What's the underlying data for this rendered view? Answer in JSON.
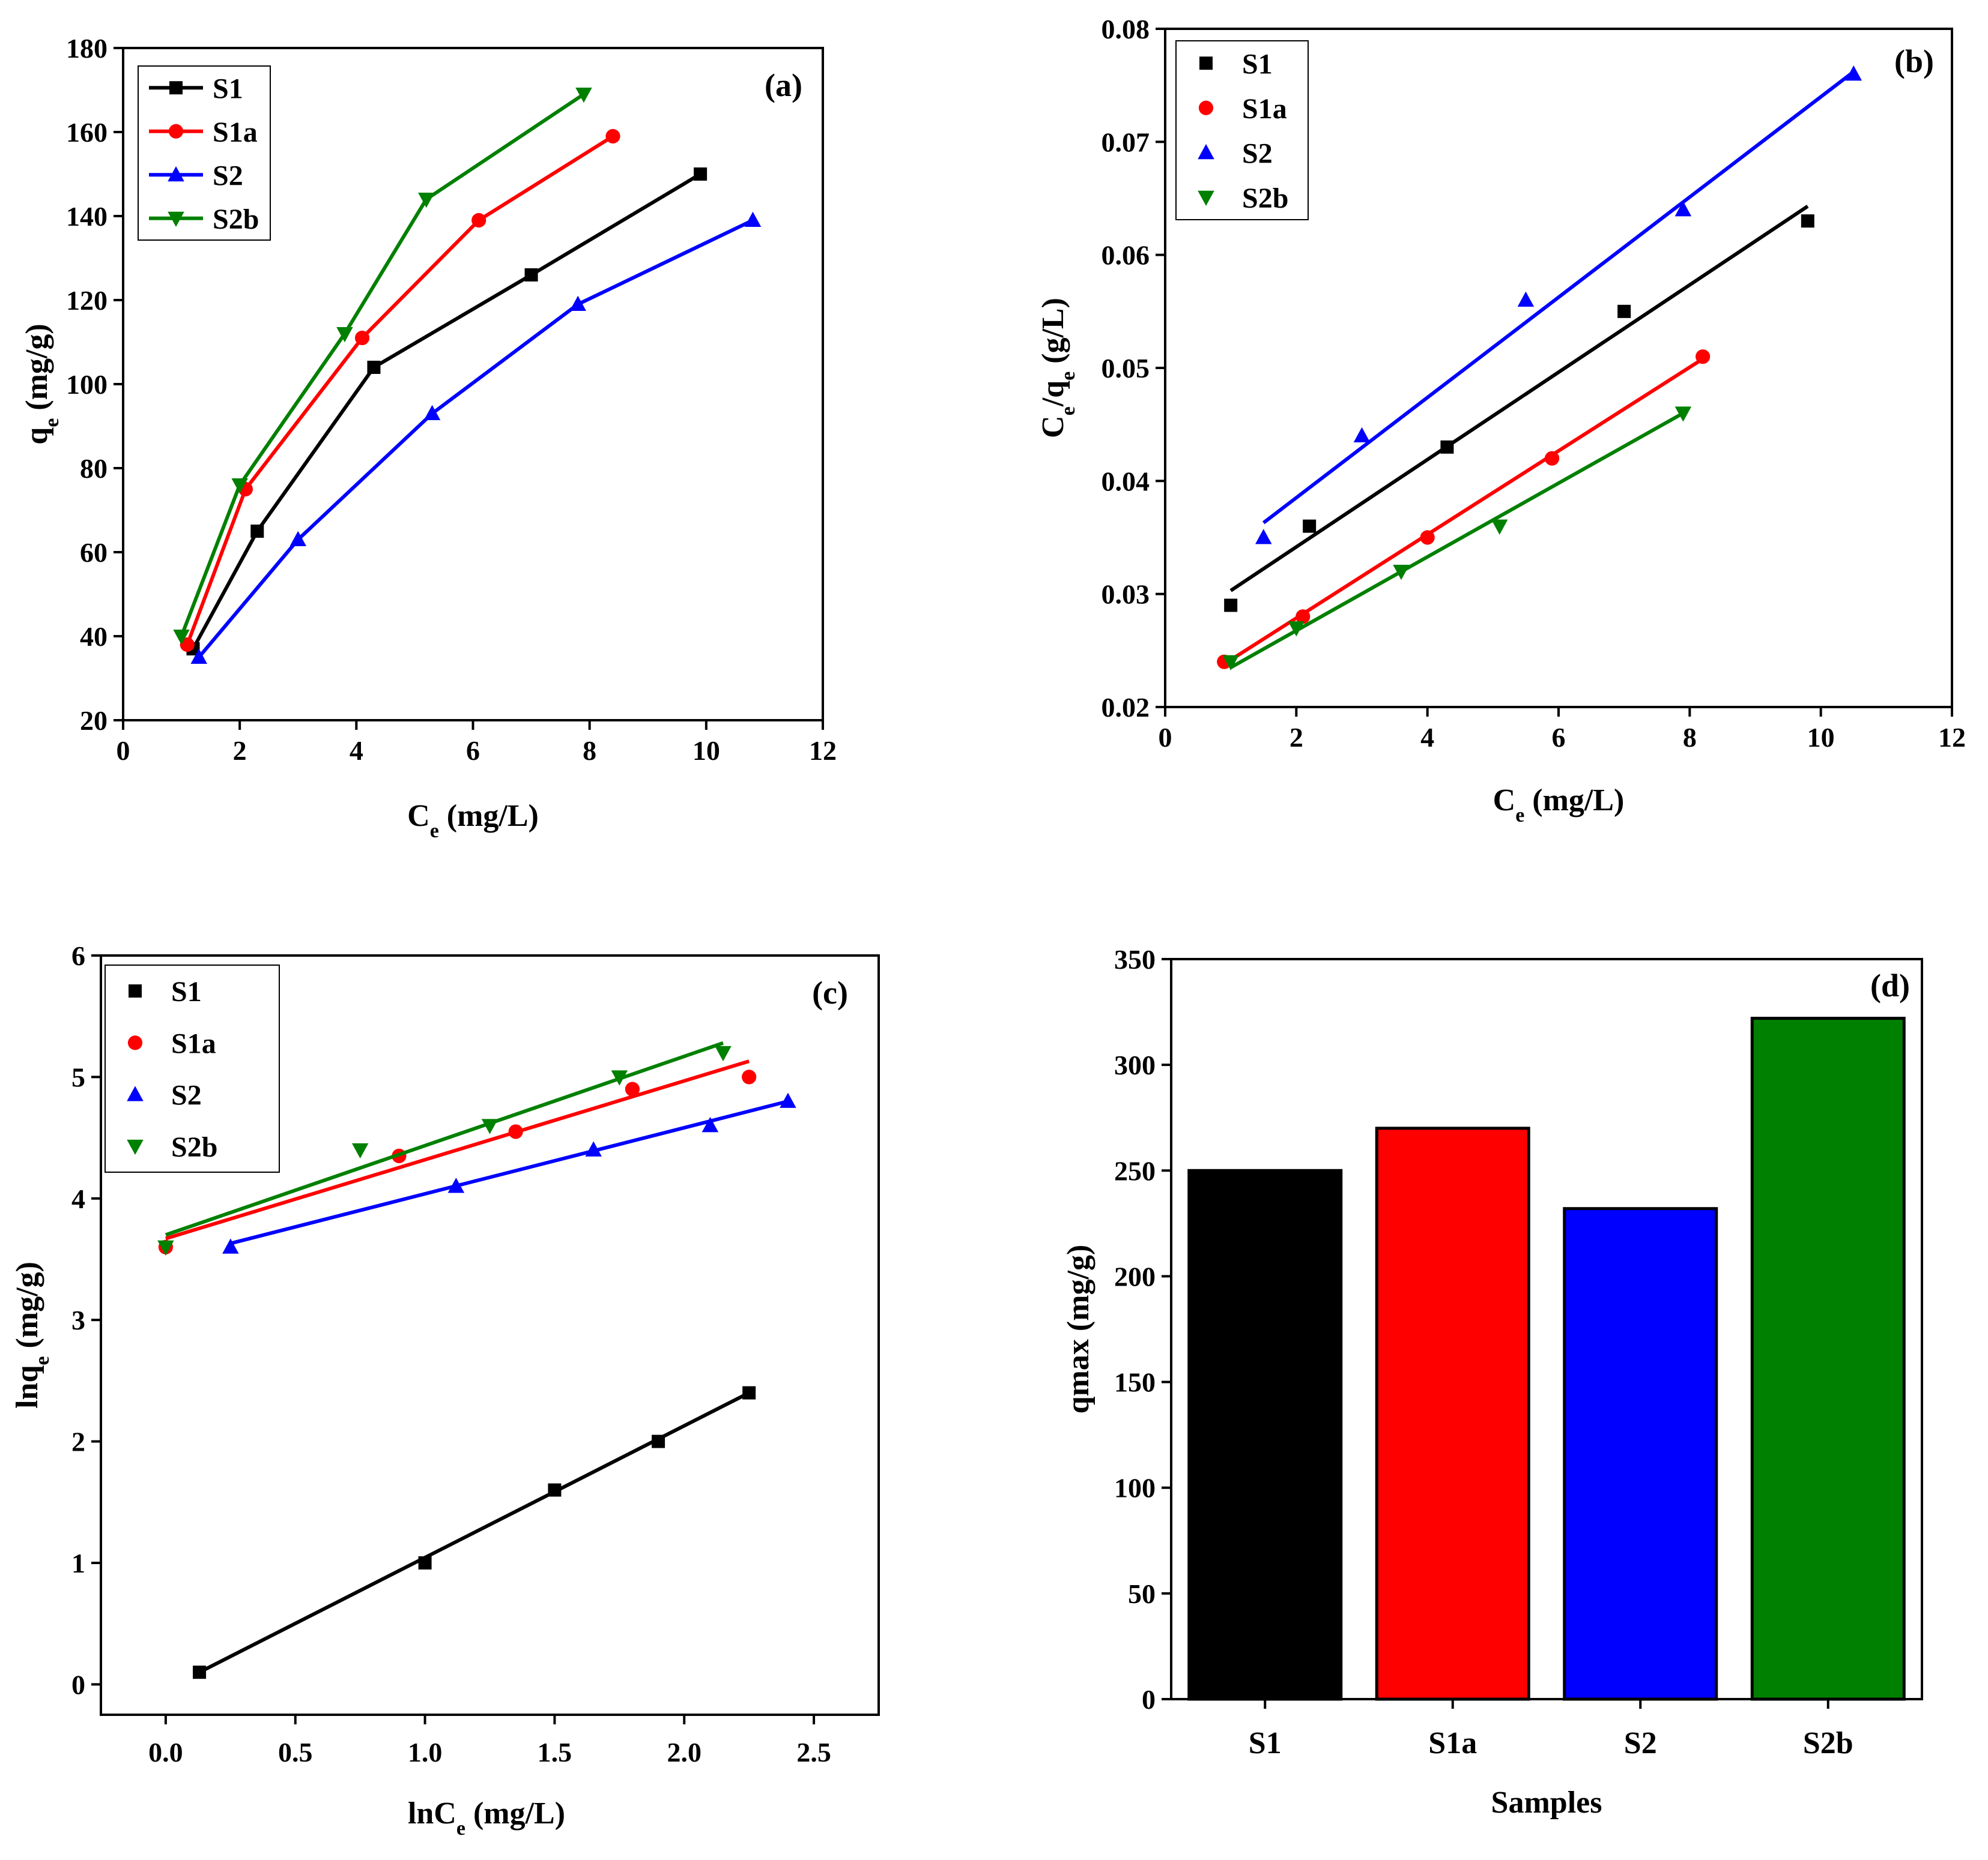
{
  "chart_data": [
    {
      "panel": "(a)",
      "type": "line",
      "xlabel_main": "C",
      "xlabel_sub": "e",
      "xlabel_rest": " (mg/L)",
      "ylabel_main": "q",
      "ylabel_sub": "e",
      "ylabel_rest": " (mg/g)",
      "xlim": [
        0,
        12
      ],
      "ylim": [
        20,
        180
      ],
      "xticks": [
        0,
        2,
        4,
        6,
        8,
        10,
        12
      ],
      "yticks": [
        20,
        40,
        60,
        80,
        100,
        120,
        140,
        160,
        180
      ],
      "series": [
        {
          "name": "S1",
          "color": "#000000",
          "marker": "square",
          "x": [
            1.2,
            2.3,
            4.3,
            7.0,
            9.9
          ],
          "y": [
            37,
            65,
            104,
            126,
            150
          ]
        },
        {
          "name": "S1a",
          "color": "#ff0000",
          "marker": "circle",
          "x": [
            1.1,
            2.1,
            4.1,
            6.1,
            8.4
          ],
          "y": [
            38,
            75,
            111,
            139,
            159
          ]
        },
        {
          "name": "S2",
          "color": "#0000ff",
          "marker": "triangle-up",
          "x": [
            1.3,
            3.0,
            5.3,
            7.8,
            10.8
          ],
          "y": [
            35,
            63,
            93,
            119,
            139
          ]
        },
        {
          "name": "S2b",
          "color": "#008000",
          "marker": "triangle-down",
          "x": [
            1.0,
            2.0,
            3.8,
            5.2,
            7.9
          ],
          "y": [
            40,
            76,
            112,
            144,
            169
          ]
        }
      ]
    },
    {
      "panel": "(b)",
      "type": "scatter",
      "xlabel_main": "C",
      "xlabel_sub": "e",
      "xlabel_rest": " (mg/L)",
      "ylabel_main": "C",
      "ylabel_sub": "e",
      "ylabel_rest": "/q",
      "ylabel_sub2": "e",
      "ylabel_rest2": " (g/L)",
      "xlim": [
        0,
        12
      ],
      "ylim": [
        0.02,
        0.08
      ],
      "xticks": [
        0,
        2,
        4,
        6,
        8,
        10,
        12
      ],
      "yticks": [
        "0.02",
        "0.03",
        "0.04",
        "0.05",
        "0.06",
        "0.07",
        "0.08"
      ],
      "series": [
        {
          "name": "S1",
          "color": "#000000",
          "marker": "square",
          "x": [
            1.0,
            2.2,
            4.3,
            7.0,
            9.8
          ],
          "y": [
            0.029,
            0.036,
            0.043,
            0.055,
            0.063
          ],
          "fit": [
            [
              1.0,
              0.0303
            ],
            [
              9.8,
              0.0643
            ]
          ]
        },
        {
          "name": "S1a",
          "color": "#ff0000",
          "marker": "circle",
          "x": [
            0.9,
            2.1,
            4.0,
            5.9,
            8.2
          ],
          "y": [
            0.024,
            0.028,
            0.035,
            0.042,
            0.051
          ],
          "fit": [
            [
              0.9,
              0.0238
            ],
            [
              8.2,
              0.0508
            ]
          ]
        },
        {
          "name": "S2",
          "color": "#0000ff",
          "marker": "triangle-up",
          "x": [
            1.5,
            3.0,
            5.5,
            7.9,
            10.5
          ],
          "y": [
            0.035,
            0.044,
            0.056,
            0.064,
            0.076
          ],
          "fit": [
            [
              1.5,
              0.0363
            ],
            [
              10.5,
              0.0762
            ]
          ]
        },
        {
          "name": "S2b",
          "color": "#008000",
          "marker": "triangle-down",
          "x": [
            1.0,
            2.0,
            3.6,
            5.1,
            7.9
          ],
          "y": [
            0.024,
            0.027,
            0.032,
            0.036,
            0.046
          ],
          "fit": [
            [
              1.0,
              0.0235
            ],
            [
              7.9,
              0.046
            ]
          ]
        }
      ]
    },
    {
      "panel": "(c)",
      "type": "scatter",
      "xlabel_main": "lnC",
      "xlabel_sub": "e",
      "xlabel_rest": " (mg/L)",
      "ylabel_main": "lnq",
      "ylabel_sub": "e",
      "ylabel_rest": " (mg/g)",
      "xlim": [
        -0.25,
        2.75
      ],
      "ylim": [
        -0.25,
        6
      ],
      "xticks": [
        "0.0",
        "0.5",
        "1.0",
        "1.5",
        "2.0",
        "2.5"
      ],
      "yticks": [
        0,
        1,
        2,
        3,
        4,
        5,
        6
      ],
      "series": [
        {
          "name": "S1",
          "color": "#000000",
          "marker": "square",
          "x": [
            0.13,
            1.0,
            1.5,
            1.9,
            2.25
          ],
          "y": [
            0.1,
            1.0,
            1.6,
            2.0,
            2.4
          ],
          "fit": [
            [
              0.13,
              0.1
            ],
            [
              2.25,
              2.4
            ]
          ]
        },
        {
          "name": "S1a",
          "color": "#ff0000",
          "marker": "circle",
          "x": [
            0.0,
            0.9,
            1.35,
            1.8,
            2.25
          ],
          "y": [
            3.6,
            4.35,
            4.55,
            4.9,
            5.0
          ],
          "fit": [
            [
              0.0,
              3.67
            ],
            [
              2.25,
              5.13
            ]
          ]
        },
        {
          "name": "S2",
          "color": "#0000ff",
          "marker": "triangle-up",
          "x": [
            0.25,
            1.12,
            1.65,
            2.1,
            2.4
          ],
          "y": [
            3.6,
            4.1,
            4.4,
            4.6,
            4.8
          ],
          "fit": [
            [
              0.25,
              3.63
            ],
            [
              2.4,
              4.8
            ]
          ]
        },
        {
          "name": "S2b",
          "color": "#008000",
          "marker": "triangle-down",
          "x": [
            0.0,
            0.75,
            1.25,
            1.75,
            2.15
          ],
          "y": [
            3.6,
            4.4,
            4.6,
            5.0,
            5.2
          ],
          "fit": [
            [
              0.0,
              3.7
            ],
            [
              2.15,
              5.28
            ]
          ]
        }
      ]
    },
    {
      "panel": "(d)",
      "type": "bar",
      "xlabel": "Samples",
      "ylabel": "qmax (mg/g)",
      "categories": [
        "S1",
        "S1a",
        "S2",
        "S2b"
      ],
      "values": [
        250,
        270,
        232,
        322
      ],
      "colors": [
        "#000000",
        "#ff0000",
        "#0000ff",
        "#008000"
      ],
      "ylim": [
        0,
        350
      ],
      "yticks": [
        0,
        50,
        100,
        150,
        200,
        250,
        300,
        350
      ]
    }
  ]
}
